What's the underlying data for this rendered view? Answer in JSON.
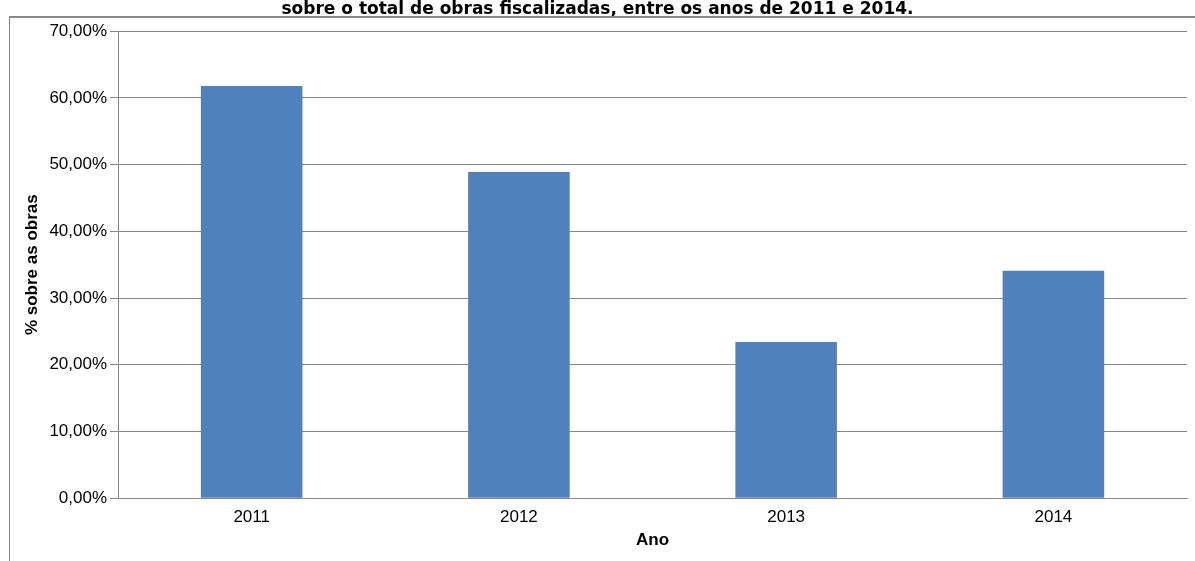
{
  "chart_data": {
    "type": "bar",
    "title": "sobre o total de obras fiscalizadas, entre os anos de 2011 e 2014.",
    "xlabel": "Ano",
    "ylabel": "% sobre as obras",
    "categories": [
      "2011",
      "2012",
      "2013",
      "2014"
    ],
    "values": [
      61.8,
      48.9,
      23.4,
      34.1
    ],
    "color": "#4f81bd",
    "ylim": [
      0,
      70
    ],
    "yticks": [
      {
        "value": 0,
        "label": "0,00%"
      },
      {
        "value": 10,
        "label": "10,00%"
      },
      {
        "value": 20,
        "label": "20,00%"
      },
      {
        "value": 30,
        "label": "30,00%"
      },
      {
        "value": 40,
        "label": "40,00%"
      },
      {
        "value": 50,
        "label": "50,00%"
      },
      {
        "value": 60,
        "label": "60,00%"
      },
      {
        "value": 70,
        "label": "70,00%"
      }
    ],
    "grid": "y",
    "legend": false
  }
}
